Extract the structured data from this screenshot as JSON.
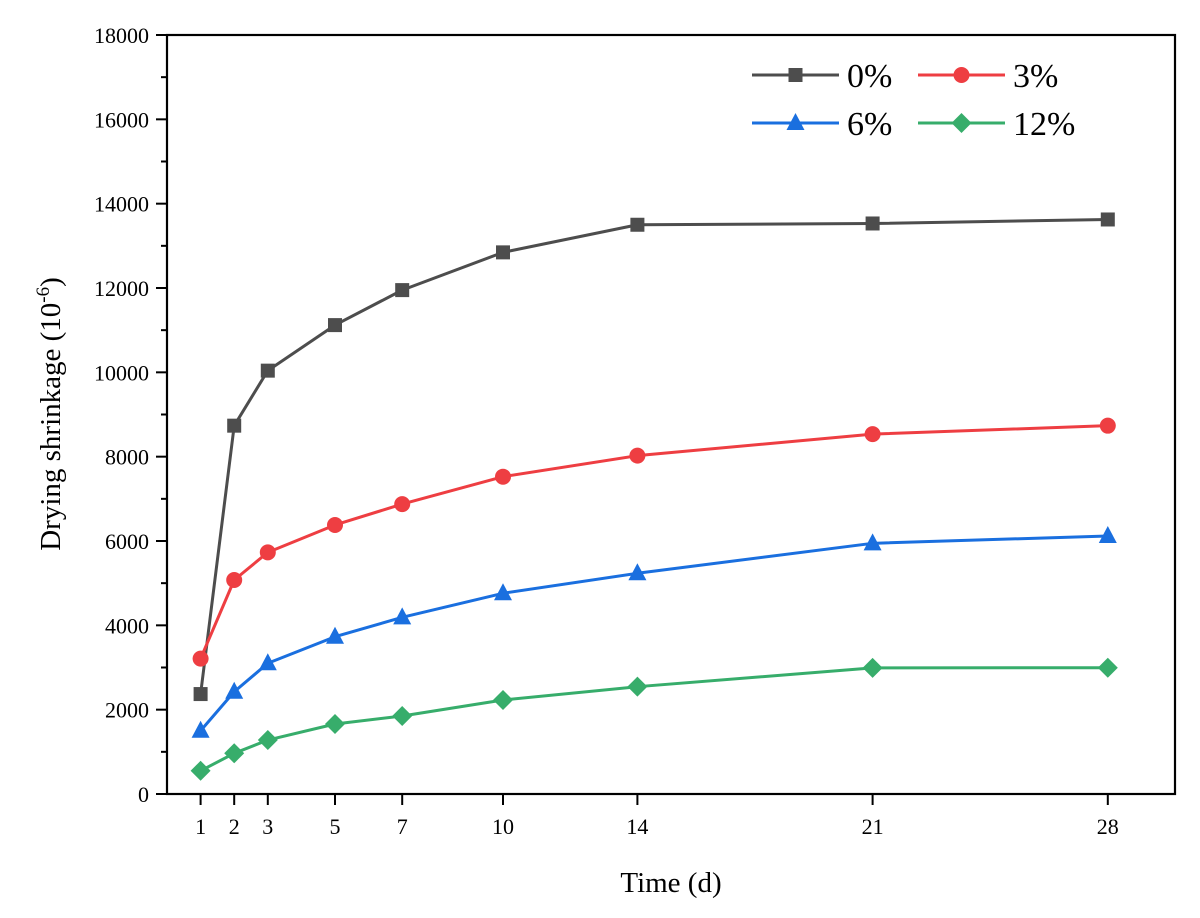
{
  "chart_data": {
    "type": "line",
    "title": "",
    "xlabel": "Time (d)",
    "ylabel": "Drying shrinkage (10",
    "ylabel_superscript": "-6",
    "ylabel_close": ")",
    "xlim": [
      0,
      30
    ],
    "ylim": [
      0,
      18000
    ],
    "x": [
      1,
      2,
      3,
      5,
      7,
      10,
      14,
      21,
      28
    ],
    "x_ticks": [
      "1",
      "2",
      "3",
      "5",
      "7",
      "10",
      "14",
      "21",
      "28"
    ],
    "y_ticks": [
      "0",
      "2000",
      "4000",
      "6000",
      "8000",
      "10000",
      "12000",
      "14000",
      "16000",
      "18000"
    ],
    "grid": false,
    "legend_position": "top-right",
    "series": [
      {
        "name": "0%",
        "color": "#4d4d4d",
        "marker": "square",
        "values": [
          2370,
          8735,
          10040,
          11120,
          11950,
          12845,
          13500,
          13530,
          13625
        ]
      },
      {
        "name": "3%",
        "color": "#ee3e42",
        "marker": "circle",
        "values": [
          3210,
          5075,
          5730,
          6380,
          6875,
          7525,
          8025,
          8535,
          8735
        ]
      },
      {
        "name": "6%",
        "color": "#1a6fdf",
        "marker": "triangle",
        "values": [
          1500,
          2425,
          3100,
          3730,
          4190,
          4760,
          5235,
          5945,
          6120
        ]
      },
      {
        "name": "12%",
        "color": "#37ad6b",
        "marker": "diamond",
        "values": [
          550,
          965,
          1280,
          1660,
          1850,
          2230,
          2545,
          2990,
          2995
        ]
      }
    ]
  }
}
